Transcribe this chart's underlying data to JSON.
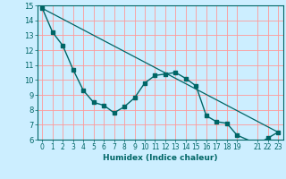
{
  "title": "",
  "xlabel": "Humidex (Indice chaleur)",
  "ylabel": "",
  "background_color": "#cceeff",
  "grid_color": "#ff9999",
  "line_color": "#006666",
  "xlim": [
    -0.5,
    23.5
  ],
  "ylim": [
    6,
    15
  ],
  "xticks": [
    0,
    1,
    2,
    3,
    4,
    5,
    6,
    7,
    8,
    9,
    10,
    11,
    12,
    13,
    14,
    15,
    16,
    17,
    18,
    19,
    21,
    22,
    23
  ],
  "yticks": [
    6,
    7,
    8,
    9,
    10,
    11,
    12,
    13,
    14,
    15
  ],
  "line1_x": [
    0,
    1,
    2,
    3,
    4,
    5,
    6,
    7,
    8,
    9,
    10,
    11,
    12,
    13,
    14,
    15,
    16,
    17,
    18,
    19,
    21,
    22,
    23
  ],
  "line1_y": [
    14.8,
    13.2,
    12.3,
    10.7,
    9.3,
    8.5,
    8.3,
    7.8,
    8.2,
    8.8,
    9.8,
    10.3,
    10.4,
    10.5,
    10.1,
    9.6,
    7.6,
    7.2,
    7.1,
    6.3,
    5.7,
    6.1,
    6.5
  ],
  "line2_x": [
    0,
    23
  ],
  "line2_y": [
    14.8,
    6.5
  ]
}
